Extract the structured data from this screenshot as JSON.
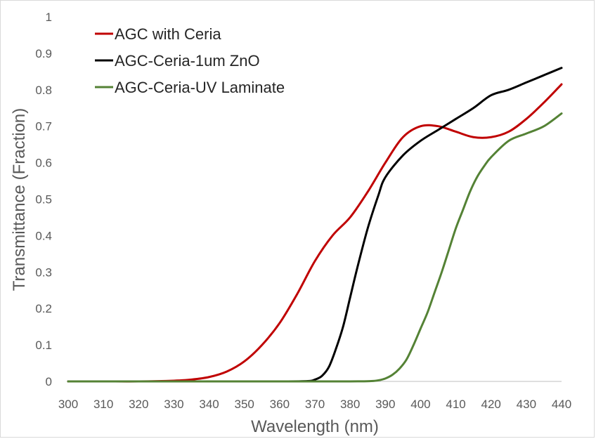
{
  "chart_data": {
    "type": "line",
    "title": "",
    "xlabel": "Wavelength (nm)",
    "ylabel": "Transmittance (Fraction)",
    "xlim": [
      300,
      440
    ],
    "ylim": [
      0,
      1
    ],
    "x_ticks": [
      "300",
      "310",
      "320",
      "330",
      "340",
      "350",
      "360",
      "370",
      "380",
      "390",
      "400",
      "410",
      "420",
      "430",
      "440"
    ],
    "y_ticks": [
      "0",
      "0.1",
      "0.2",
      "0.3",
      "0.4",
      "0.5",
      "0.6",
      "0.7",
      "0.8",
      "0.9",
      "1"
    ],
    "grid": false,
    "legend_position": "top-left",
    "series": [
      {
        "name": "AGC with Ceria",
        "color": "#c00000",
        "x": [
          300,
          310,
          320,
          330,
          335,
          340,
          345,
          350,
          355,
          360,
          365,
          370,
          375,
          380,
          385,
          390,
          395,
          400,
          405,
          410,
          415,
          420,
          425,
          430,
          435,
          440
        ],
        "y": [
          0,
          0,
          0,
          0.002,
          0.005,
          0.012,
          0.027,
          0.055,
          0.1,
          0.16,
          0.24,
          0.33,
          0.4,
          0.45,
          0.52,
          0.6,
          0.67,
          0.7,
          0.7,
          0.685,
          0.67,
          0.67,
          0.685,
          0.72,
          0.765,
          0.815
        ]
      },
      {
        "name": "AGC-Ceria-1um ZnO",
        "color": "#000000",
        "x": [
          300,
          320,
          340,
          360,
          368,
          370,
          372,
          374,
          376,
          378,
          380,
          382,
          385,
          388,
          390,
          395,
          400,
          405,
          410,
          415,
          420,
          425,
          430,
          435,
          440
        ],
        "y": [
          0,
          0,
          0,
          0,
          0.001,
          0.005,
          0.015,
          0.04,
          0.09,
          0.15,
          0.23,
          0.31,
          0.42,
          0.51,
          0.56,
          0.62,
          0.66,
          0.69,
          0.72,
          0.75,
          0.785,
          0.8,
          0.82,
          0.84,
          0.86
        ]
      },
      {
        "name": "AGC-Ceria-UV Laminate",
        "color": "#548235",
        "x": [
          300,
          320,
          340,
          360,
          380,
          386,
          388,
          390,
          392,
          394,
          396,
          398,
          400,
          402,
          404,
          406,
          408,
          410,
          412,
          414,
          416,
          418,
          420,
          425,
          430,
          435,
          440
        ],
        "y": [
          0,
          0,
          0,
          0,
          0,
          0.001,
          0.003,
          0.008,
          0.018,
          0.035,
          0.06,
          0.1,
          0.145,
          0.19,
          0.245,
          0.3,
          0.36,
          0.42,
          0.47,
          0.52,
          0.56,
          0.59,
          0.615,
          0.66,
          0.68,
          0.7,
          0.735
        ]
      }
    ]
  }
}
